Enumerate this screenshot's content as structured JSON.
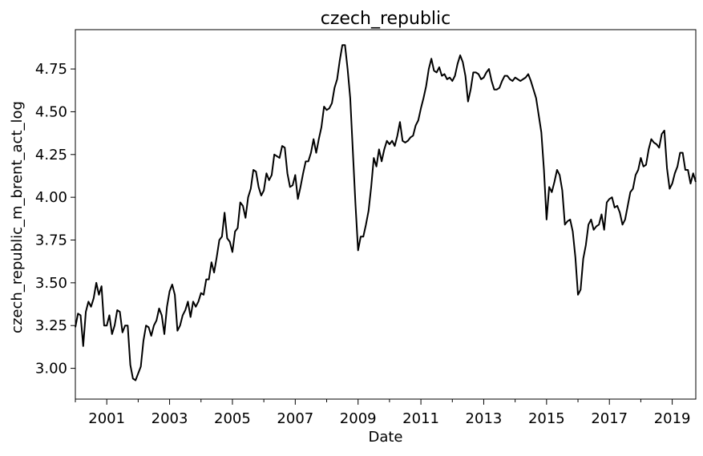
{
  "chart_data": {
    "type": "line",
    "title": "czech_republic",
    "xlabel": "Date",
    "ylabel": "czech_republic_m_brent_act_log",
    "xlim": [
      "2000-01-01",
      "2019-10-01"
    ],
    "ylim": [
      2.82,
      4.98
    ],
    "grid": false,
    "legend": "none",
    "x_ticks": [
      "2001",
      "2003",
      "2005",
      "2007",
      "2009",
      "2011",
      "2013",
      "2015",
      "2017",
      "2019"
    ],
    "x_minor_ticks": [
      "2000",
      "2002",
      "2004",
      "2006",
      "2008",
      "2010",
      "2012",
      "2014",
      "2016",
      "2018"
    ],
    "y_ticks": [
      "3.00",
      "3.25",
      "3.50",
      "3.75",
      "4.00",
      "4.25",
      "4.50",
      "4.75"
    ],
    "line_color": "#000000",
    "series": [
      {
        "x": [
          "2000-01",
          "2000-02",
          "2000-03",
          "2000-04",
          "2000-05",
          "2000-06",
          "2000-07",
          "2000-08",
          "2000-09",
          "2000-10",
          "2000-11",
          "2000-12",
          "2001-01",
          "2001-02",
          "2001-03",
          "2001-04",
          "2001-05",
          "2001-06",
          "2001-07",
          "2001-08",
          "2001-09",
          "2001-10",
          "2001-11",
          "2001-12",
          "2002-01",
          "2002-02",
          "2002-03",
          "2002-04",
          "2002-05",
          "2002-06",
          "2002-07",
          "2002-08",
          "2002-09",
          "2002-10",
          "2002-11",
          "2002-12",
          "2003-01",
          "2003-02",
          "2003-03",
          "2003-04",
          "2003-05",
          "2003-06",
          "2003-07",
          "2003-08",
          "2003-09",
          "2003-10",
          "2003-11",
          "2003-12",
          "2004-01",
          "2004-02",
          "2004-03",
          "2004-04",
          "2004-05",
          "2004-06",
          "2004-07",
          "2004-08",
          "2004-09",
          "2004-10",
          "2004-11",
          "2004-12",
          "2005-01",
          "2005-02",
          "2005-03",
          "2005-04",
          "2005-05",
          "2005-06",
          "2005-07",
          "2005-08",
          "2005-09",
          "2005-10",
          "2005-11",
          "2005-12",
          "2006-01",
          "2006-02",
          "2006-03",
          "2006-04",
          "2006-05",
          "2006-06",
          "2006-07",
          "2006-08",
          "2006-09",
          "2006-10",
          "2006-11",
          "2006-12",
          "2007-01",
          "2007-02",
          "2007-03",
          "2007-04",
          "2007-05",
          "2007-06",
          "2007-07",
          "2007-08",
          "2007-09",
          "2007-10",
          "2007-11",
          "2007-12",
          "2008-01",
          "2008-02",
          "2008-03",
          "2008-04",
          "2008-05",
          "2008-06",
          "2008-07",
          "2008-08",
          "2008-09",
          "2008-10",
          "2008-11",
          "2008-12",
          "2009-01",
          "2009-02",
          "2009-03",
          "2009-04",
          "2009-05",
          "2009-06",
          "2009-07",
          "2009-08",
          "2009-09",
          "2009-10",
          "2009-11",
          "2009-12",
          "2010-01",
          "2010-02",
          "2010-03",
          "2010-04",
          "2010-05",
          "2010-06",
          "2010-07",
          "2010-08",
          "2010-09",
          "2010-10",
          "2010-11",
          "2010-12",
          "2011-01",
          "2011-02",
          "2011-03",
          "2011-04",
          "2011-05",
          "2011-06",
          "2011-07",
          "2011-08",
          "2011-09",
          "2011-10",
          "2011-11",
          "2011-12",
          "2012-01",
          "2012-02",
          "2012-03",
          "2012-04",
          "2012-05",
          "2012-06",
          "2012-07",
          "2012-08",
          "2012-09",
          "2012-10",
          "2012-11",
          "2012-12",
          "2013-01",
          "2013-02",
          "2013-03",
          "2013-04",
          "2013-05",
          "2013-06",
          "2013-07",
          "2013-08",
          "2013-09",
          "2013-10",
          "2013-11",
          "2013-12",
          "2014-01",
          "2014-02",
          "2014-03",
          "2014-04",
          "2014-05",
          "2014-06",
          "2014-07",
          "2014-08",
          "2014-09",
          "2014-10",
          "2014-11",
          "2014-12",
          "2015-01",
          "2015-02",
          "2015-03",
          "2015-04",
          "2015-05",
          "2015-06",
          "2015-07",
          "2015-08",
          "2015-09",
          "2015-10",
          "2015-11",
          "2015-12",
          "2016-01",
          "2016-02",
          "2016-03",
          "2016-04",
          "2016-05",
          "2016-06",
          "2016-07",
          "2016-08",
          "2016-09",
          "2016-10",
          "2016-11",
          "2016-12",
          "2017-01",
          "2017-02",
          "2017-03",
          "2017-04",
          "2017-05",
          "2017-06",
          "2017-07",
          "2017-08",
          "2017-09",
          "2017-10",
          "2017-11",
          "2017-12",
          "2018-01",
          "2018-02",
          "2018-03",
          "2018-04",
          "2018-05",
          "2018-06",
          "2018-07",
          "2018-08",
          "2018-09",
          "2018-10",
          "2018-11",
          "2018-12",
          "2019-01",
          "2019-02",
          "2019-03",
          "2019-04",
          "2019-05",
          "2019-06",
          "2019-07",
          "2019-08",
          "2019-09",
          "2019-10"
        ],
        "y": [
          3.24,
          3.32,
          3.31,
          3.13,
          3.33,
          3.39,
          3.36,
          3.41,
          3.5,
          3.43,
          3.48,
          3.25,
          3.25,
          3.31,
          3.2,
          3.25,
          3.34,
          3.33,
          3.21,
          3.25,
          3.25,
          3.02,
          2.94,
          2.93,
          2.97,
          3.01,
          3.16,
          3.25,
          3.24,
          3.19,
          3.25,
          3.28,
          3.35,
          3.31,
          3.2,
          3.36,
          3.45,
          3.49,
          3.43,
          3.22,
          3.25,
          3.31,
          3.34,
          3.39,
          3.3,
          3.39,
          3.36,
          3.39,
          3.44,
          3.43,
          3.52,
          3.52,
          3.62,
          3.56,
          3.65,
          3.75,
          3.77,
          3.91,
          3.76,
          3.74,
          3.68,
          3.8,
          3.82,
          3.97,
          3.95,
          3.88,
          4.0,
          4.05,
          4.16,
          4.15,
          4.06,
          4.01,
          4.04,
          4.14,
          4.1,
          4.13,
          4.25,
          4.24,
          4.23,
          4.3,
          4.29,
          4.14,
          4.06,
          4.07,
          4.13,
          3.99,
          4.06,
          4.14,
          4.21,
          4.21,
          4.26,
          4.34,
          4.26,
          4.34,
          4.41,
          4.53,
          4.51,
          4.52,
          4.55,
          4.64,
          4.69,
          4.8,
          4.89,
          4.89,
          4.75,
          4.58,
          4.27,
          3.96,
          3.69,
          3.77,
          3.77,
          3.84,
          3.92,
          4.06,
          4.23,
          4.18,
          4.28,
          4.21,
          4.28,
          4.33,
          4.31,
          4.33,
          4.3,
          4.36,
          4.44,
          4.33,
          4.32,
          4.33,
          4.35,
          4.36,
          4.42,
          4.45,
          4.52,
          4.58,
          4.65,
          4.75,
          4.81,
          4.74,
          4.73,
          4.76,
          4.71,
          4.72,
          4.69,
          4.7,
          4.68,
          4.71,
          4.78,
          4.83,
          4.79,
          4.71,
          4.56,
          4.63,
          4.73,
          4.73,
          4.72,
          4.69,
          4.7,
          4.73,
          4.75,
          4.68,
          4.63,
          4.63,
          4.64,
          4.68,
          4.71,
          4.71,
          4.69,
          4.68,
          4.7,
          4.69,
          4.68,
          4.69,
          4.7,
          4.72,
          4.68,
          4.63,
          4.58,
          4.48,
          4.38,
          4.16,
          3.87,
          4.06,
          4.03,
          4.09,
          4.16,
          4.13,
          4.04,
          3.84,
          3.86,
          3.87,
          3.8,
          3.65,
          3.43,
          3.46,
          3.64,
          3.72,
          3.84,
          3.87,
          3.81,
          3.83,
          3.84,
          3.9,
          3.81,
          3.97,
          3.99,
          4.0,
          3.94,
          3.95,
          3.91,
          3.84,
          3.87,
          3.95,
          4.03,
          4.05,
          4.13,
          4.16,
          4.23,
          4.18,
          4.19,
          4.28,
          4.34,
          4.32,
          4.31,
          4.29,
          4.37,
          4.39,
          4.17,
          4.05,
          4.08,
          4.14,
          4.18,
          4.26,
          4.26,
          4.16,
          4.16,
          4.08,
          4.14,
          4.09
        ]
      }
    ]
  }
}
